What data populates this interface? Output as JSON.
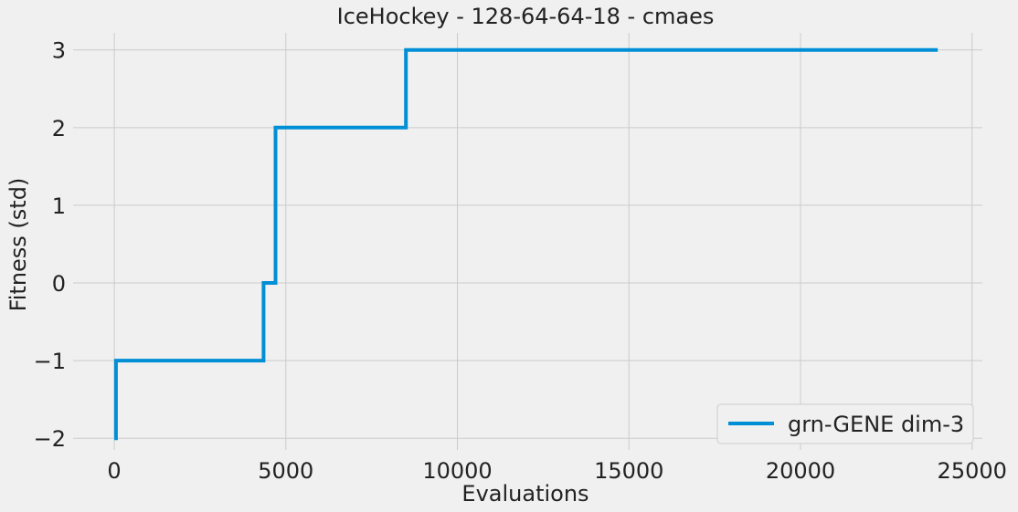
{
  "chart_data": {
    "type": "line",
    "title": "IceHockey - 128-64-64-18 - cmaes",
    "xlabel": "Evaluations",
    "ylabel": "Fitness (std)",
    "xlim": [
      -1200,
      25300
    ],
    "ylim": [
      -2.15,
      3.22
    ],
    "xticks": [
      0,
      5000,
      10000,
      15000,
      20000,
      25000
    ],
    "xtick_labels": [
      "0",
      "5000",
      "10000",
      "15000",
      "20000",
      "25000"
    ],
    "yticks": [
      -2,
      -1,
      0,
      1,
      2,
      3
    ],
    "ytick_labels": [
      "−2",
      "−1",
      "0",
      "1",
      "2",
      "3"
    ],
    "grid": true,
    "legend_position": "lower right",
    "series": [
      {
        "name": "grn-GENE dim-3",
        "color": "#008fd5",
        "x": [
          0,
          50,
          50,
          4350,
          4350,
          4700,
          4700,
          8500,
          8500,
          24000
        ],
        "y": [
          -2,
          -2,
          -1,
          -1,
          0,
          0,
          2,
          2,
          3,
          3
        ]
      }
    ]
  }
}
